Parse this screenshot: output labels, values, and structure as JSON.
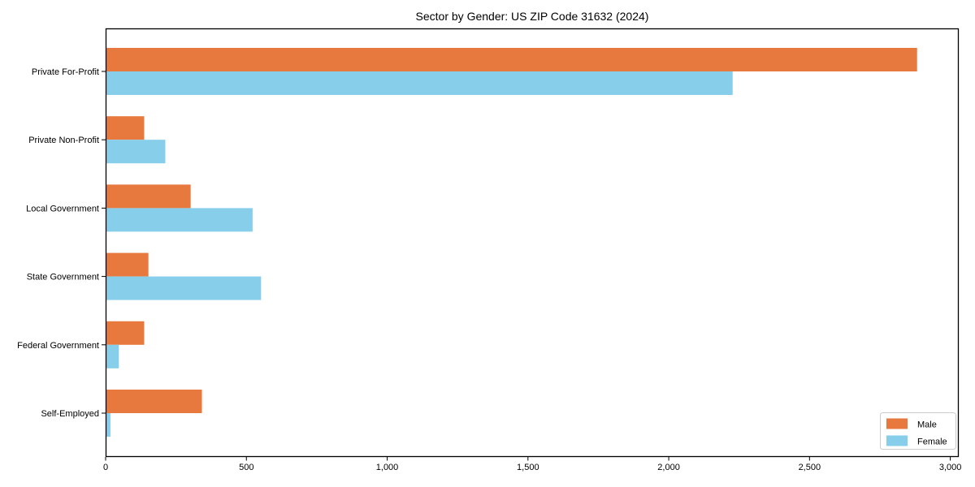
{
  "chart_data": {
    "type": "bar",
    "orientation": "horizontal",
    "title": "Sector by Gender: US ZIP Code 31632 (2024)",
    "xlabel": "",
    "ylabel": "",
    "categories": [
      "Private For-Profit",
      "Private Non-Profit",
      "Local Government",
      "State Government",
      "Federal Government",
      "Self-Employed"
    ],
    "series": [
      {
        "name": "Male",
        "color": "#E8793E",
        "values": [
          2880,
          135,
          300,
          150,
          135,
          340
        ]
      },
      {
        "name": "Female",
        "color": "#87CEEB",
        "values": [
          2225,
          210,
          520,
          550,
          45,
          15
        ]
      }
    ],
    "x_ticks": [
      0,
      500,
      1000,
      1500,
      2000,
      2500,
      3000
    ],
    "x_tick_labels": [
      "0",
      "500",
      "1,000",
      "1,500",
      "2,000",
      "2,500",
      "3,000"
    ],
    "xlim": [
      0,
      3030
    ],
    "grid": false,
    "legend": {
      "position": "lower right",
      "entries": [
        "Male",
        "Female"
      ]
    },
    "colors": {
      "male": "#E8793E",
      "female": "#87CEEB",
      "axis": "#000000",
      "legend_border": "#cccccc",
      "background": "#ffffff"
    }
  }
}
